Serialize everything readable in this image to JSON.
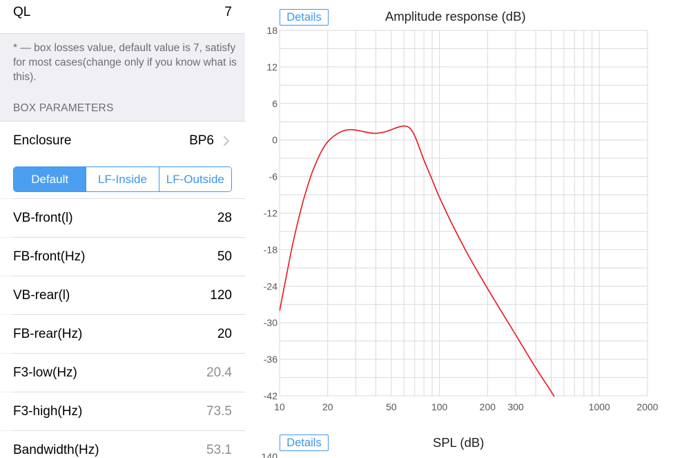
{
  "settings": {
    "ql": {
      "label": "QL",
      "value": "7"
    },
    "note": "* — box losses value, default value is 7, satisfy for most cases(change only if you know what is this).",
    "section_header": "BOX PARAMETERS",
    "enclosure": {
      "label": "Enclosure",
      "value": "BP6"
    },
    "tabs": [
      {
        "label": "Default",
        "active": true
      },
      {
        "label": "LF-Inside",
        "active": false
      },
      {
        "label": "LF-Outside",
        "active": false
      }
    ],
    "params": [
      {
        "label": "VB-front(l)",
        "value": "28",
        "editable": true
      },
      {
        "label": "FB-front(Hz)",
        "value": "50",
        "editable": true
      },
      {
        "label": "VB-rear(l)",
        "value": "120",
        "editable": true
      },
      {
        "label": "FB-rear(Hz)",
        "value": "20",
        "editable": true
      },
      {
        "label": "F3-low(Hz)",
        "value": "20.4",
        "editable": false
      },
      {
        "label": "F3-high(Hz)",
        "value": "73.5",
        "editable": false
      },
      {
        "label": "Bandwidth(Hz)",
        "value": "53.1",
        "editable": false
      }
    ]
  },
  "charts": {
    "details_label": "Details",
    "spl_title": "SPL (dB)",
    "spl_first_tick": "140"
  },
  "colors": {
    "accent": "#3b96ee",
    "curve": "#e8141e",
    "grid": "#d9d9d9"
  },
  "icons": {
    "enclosure_disclosure": "chevron-right-icon"
  },
  "chart_data": {
    "type": "line",
    "title": "Amplitude response (dB)",
    "xlabel": "",
    "ylabel": "",
    "x_scale": "log",
    "xlim": [
      10,
      2000
    ],
    "ylim": [
      -42,
      18
    ],
    "x_ticks": [
      10,
      20,
      50,
      100,
      200,
      300,
      1000,
      2000
    ],
    "y_ticks": [
      18,
      12,
      6,
      0,
      -6,
      -12,
      -18,
      -24,
      -30,
      -36,
      -42
    ],
    "grid": true,
    "series": [
      {
        "x": [
          10,
          11,
          12,
          13,
          14,
          15,
          16,
          17,
          18,
          19,
          20,
          22,
          25,
          28,
          32,
          36,
          40,
          45,
          50,
          55,
          60,
          65,
          70,
          75,
          80,
          90,
          100,
          120,
          150,
          200,
          300,
          400,
          500,
          600
        ],
        "y": [
          -28.1,
          -22.5,
          -17.5,
          -13.5,
          -10.2,
          -7.5,
          -5.3,
          -3.6,
          -2.2,
          -1.1,
          -0.3,
          0.7,
          1.5,
          1.7,
          1.5,
          1.2,
          1.1,
          1.3,
          1.7,
          2.1,
          2.3,
          2.0,
          0.7,
          -1.3,
          -3.3,
          -6.5,
          -9.4,
          -13.8,
          -18.7,
          -24.4,
          -32.0,
          -37.4,
          -41.3,
          -44.8
        ]
      }
    ]
  }
}
